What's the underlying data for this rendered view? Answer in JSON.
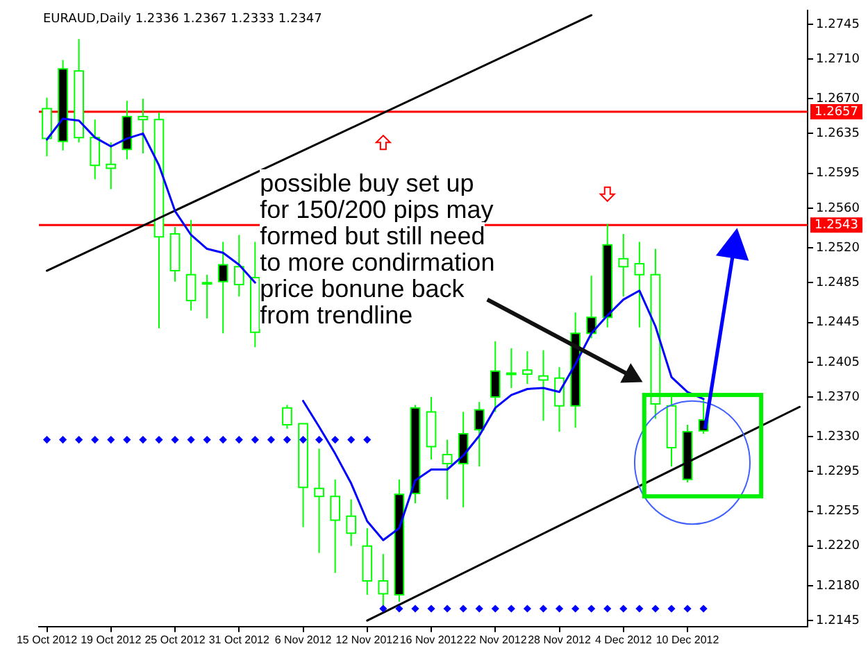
{
  "chart_data": {
    "type": "candlestick",
    "title": "EURAUD,Daily 1.2336 1.2367 1.2333 1.2347",
    "categories": [
      "15 Oct 2012",
      null,
      null,
      null,
      "19 Oct 2012",
      null,
      null,
      null,
      "25 Oct 2012",
      null,
      null,
      null,
      "31 Oct 2012",
      null,
      null,
      null,
      "6 Nov 2012",
      null,
      null,
      null,
      "12 Nov 2012",
      null,
      null,
      null,
      "16 Nov 2012",
      null,
      null,
      null,
      "22 Nov 2012",
      null,
      null,
      null,
      "28 Nov 2012",
      null,
      null,
      null,
      "4 Dec 2012",
      null,
      null,
      null,
      "10 Dec 2012",
      null,
      null,
      null,
      null,
      null,
      null,
      null
    ],
    "ohlc": [
      [
        1.266,
        1.2671,
        1.2612,
        1.263
      ],
      [
        1.2627,
        1.2709,
        1.2618,
        1.27
      ],
      [
        1.2698,
        1.273,
        1.2626,
        1.2631
      ],
      [
        1.2631,
        1.2649,
        1.2589,
        1.2603
      ],
      [
        1.2604,
        1.2626,
        1.2579,
        1.26
      ],
      [
        1.2619,
        1.2668,
        1.2609,
        1.2652
      ],
      [
        1.2652,
        1.267,
        1.2615,
        1.2649
      ],
      [
        1.2649,
        1.2656,
        1.2439,
        1.2531
      ],
      [
        1.2534,
        1.2541,
        1.2486,
        1.2497
      ],
      [
        1.2493,
        1.2548,
        1.2457,
        1.2467
      ],
      [
        1.2485,
        1.2493,
        1.2449,
        1.2484
      ],
      [
        1.2486,
        1.2526,
        1.2434,
        1.2503
      ],
      [
        1.2501,
        1.2533,
        1.2471,
        1.2483
      ],
      [
        1.249,
        1.2526,
        1.242,
        1.2435
      ],
      null,
      [
        1.2359,
        1.2362,
        1.2338,
        1.2342
      ],
      [
        1.2343,
        1.2343,
        1.2239,
        1.2279
      ],
      [
        1.2278,
        1.2318,
        1.2213,
        1.227
      ],
      [
        1.227,
        1.2287,
        1.2193,
        1.2246
      ],
      [
        1.225,
        1.2267,
        1.222,
        1.2233
      ],
      [
        1.222,
        1.2238,
        1.2171,
        1.2185
      ],
      [
        1.2185,
        1.2212,
        1.2156,
        1.2172
      ],
      [
        1.2171,
        1.2287,
        1.2164,
        1.2272
      ],
      [
        1.2273,
        1.2362,
        1.2263,
        1.2359
      ],
      [
        1.2355,
        1.237,
        1.2307,
        1.232
      ],
      [
        1.2312,
        1.2327,
        1.2267,
        1.2303
      ],
      [
        1.2303,
        1.2355,
        1.2259,
        1.2333
      ],
      [
        1.2337,
        1.2365,
        1.23,
        1.2357
      ],
      [
        1.237,
        1.2426,
        1.2355,
        1.2396
      ],
      [
        1.2394,
        1.2419,
        1.2379,
        1.2394
      ],
      [
        1.2397,
        1.2416,
        1.2383,
        1.2393
      ],
      [
        1.2391,
        1.2417,
        1.2346,
        1.2387
      ],
      [
        1.2389,
        1.24,
        1.2335,
        1.2361
      ],
      [
        1.2361,
        1.2455,
        1.2339,
        1.2434
      ],
      [
        1.2434,
        1.2492,
        1.2429,
        1.245
      ],
      [
        1.245,
        1.2544,
        1.244,
        1.2523
      ],
      [
        1.2509,
        1.2534,
        1.2471,
        1.2501
      ],
      [
        1.2504,
        1.2526,
        1.244,
        1.2493
      ],
      [
        1.2493,
        1.2519,
        1.2348,
        1.2363
      ],
      [
        1.2361,
        1.2372,
        1.23,
        1.2319
      ],
      [
        1.2287,
        1.2342,
        1.2284,
        1.2335
      ],
      [
        1.2336,
        1.2367,
        1.2333,
        1.2347
      ],
      null,
      null,
      null,
      null,
      null,
      null
    ],
    "series": [
      {
        "type": "line",
        "color": "#0000ff",
        "values": [
          1.2629,
          1.265,
          1.2648,
          1.2631,
          1.2622,
          1.263,
          1.2635,
          1.2603,
          1.2557,
          1.2533,
          1.2519,
          1.2515,
          1.2503,
          1.2485,
          null,
          null,
          1.2366,
          1.234,
          1.2313,
          1.2283,
          1.2245,
          1.2226,
          1.2238,
          1.2286,
          1.2297,
          1.2297,
          1.2311,
          1.2331,
          1.2359,
          1.2372,
          1.2378,
          1.2379,
          1.2375,
          1.2403,
          1.2434,
          1.2452,
          1.2468,
          1.2477,
          1.2441,
          1.239,
          1.2375,
          1.2368,
          null,
          null,
          null,
          null,
          null,
          null
        ]
      },
      {
        "type": "scatter",
        "color": "#0000ff",
        "marker": "diamond",
        "values": [
          1.2327,
          1.2327,
          1.2327,
          1.2327,
          1.2327,
          1.2327,
          1.2327,
          1.2327,
          1.2327,
          1.2327,
          1.2327,
          1.2327,
          1.2327,
          1.2327,
          1.2327,
          1.2327,
          1.2327,
          1.2327,
          1.2327,
          1.2327,
          1.2327,
          null,
          null,
          null,
          null,
          null,
          null,
          null,
          null,
          null,
          null,
          null,
          null,
          null,
          null,
          null,
          null,
          null,
          null,
          null,
          null,
          null,
          null,
          null,
          null,
          null,
          null,
          null
        ]
      },
      {
        "type": "scatter",
        "color": "#0000ff",
        "marker": "diamond",
        "values": [
          null,
          null,
          null,
          null,
          null,
          null,
          null,
          null,
          null,
          null,
          null,
          null,
          null,
          null,
          null,
          null,
          null,
          null,
          null,
          null,
          null,
          1.2157,
          1.2157,
          1.2157,
          1.2157,
          1.2157,
          1.2157,
          1.2157,
          1.2157,
          1.2157,
          1.2157,
          1.2157,
          1.2157,
          1.2157,
          1.2157,
          1.2157,
          1.2157,
          1.2157,
          1.2157,
          1.2157,
          1.2157,
          1.2157,
          null,
          null,
          null,
          null,
          null,
          null
        ]
      },
      {
        "type": "line",
        "color": "#000000",
        "values": [
          1.2497,
          null,
          null,
          null,
          null,
          null,
          null,
          null,
          null,
          null,
          null,
          null,
          null,
          null,
          null,
          null,
          null,
          null,
          null,
          null,
          null,
          null,
          null,
          null,
          null,
          null,
          null,
          null,
          null,
          null,
          null,
          null,
          null,
          null,
          1.2754,
          null,
          null,
          null,
          null,
          null,
          null,
          null,
          null,
          null,
          null,
          null,
          null,
          null
        ]
      },
      {
        "type": "line",
        "color": "#000000",
        "values": [
          null,
          null,
          null,
          null,
          null,
          null,
          null,
          null,
          null,
          null,
          null,
          null,
          null,
          null,
          null,
          null,
          null,
          null,
          null,
          null,
          1.2145,
          null,
          null,
          null,
          null,
          null,
          null,
          null,
          null,
          null,
          null,
          null,
          null,
          null,
          null,
          null,
          null,
          null,
          null,
          null,
          null,
          null,
          null,
          null,
          null,
          null,
          null,
          1.236
        ]
      }
    ],
    "ref_lines": [
      {
        "axis": "y",
        "value": 1.2657,
        "label": "1.2657",
        "color": "#ff0000"
      },
      {
        "axis": "y",
        "value": 1.2543,
        "label": "1.2543",
        "color": "#ff0000"
      }
    ],
    "ylim": [
      1.2139,
      1.2759
    ],
    "yticks": [
      1.2145,
      {
        "value": 1.218,
        "label": "1.2180"
      },
      {
        "value": 1.222,
        "label": "1.2220"
      },
      1.2255,
      1.2295,
      {
        "value": 1.233,
        "label": "1.2330"
      },
      {
        "value": 1.237,
        "label": "1.2370"
      },
      1.2405,
      1.2445,
      1.2485,
      {
        "value": 1.252,
        "label": "1.2520"
      },
      {
        "value": 1.256,
        "label": "1.2560"
      },
      1.2595,
      1.2635,
      {
        "value": 1.267,
        "label": "1.2670"
      },
      {
        "value": 1.271,
        "label": "1.2710"
      },
      1.2745
    ],
    "annotations": [
      "possible buy set up for 150/200 pips may formed but still need to more condirmation price bonune back from trendline"
    ],
    "grid": false,
    "legend": false
  }
}
